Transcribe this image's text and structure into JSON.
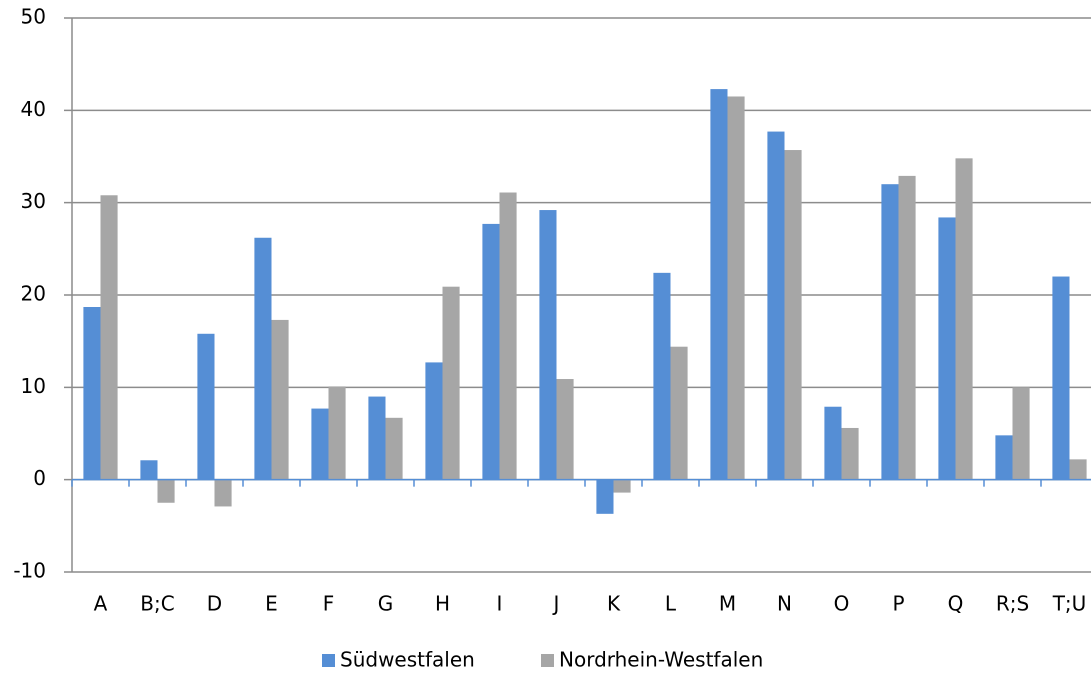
{
  "chart_data": {
    "type": "bar",
    "categories": [
      "A",
      "B;C",
      "D",
      "E",
      "F",
      "G",
      "H",
      "I",
      "J",
      "K",
      "L",
      "M",
      "N",
      "O",
      "P",
      "Q",
      "R;S",
      "T;U"
    ],
    "series": [
      {
        "name": "Südwestfalen",
        "color": "#558ed5",
        "values": [
          18.7,
          2.1,
          15.8,
          26.2,
          7.7,
          9.0,
          12.7,
          27.7,
          29.2,
          -3.7,
          22.4,
          42.3,
          37.7,
          7.9,
          32.0,
          28.4,
          4.8,
          22.0
        ]
      },
      {
        "name": "Nordrhein-Westfalen",
        "color": "#a6a6a6",
        "values": [
          30.8,
          -2.5,
          -2.9,
          17.3,
          10.1,
          6.7,
          20.9,
          31.1,
          10.9,
          -1.4,
          14.4,
          41.5,
          35.7,
          5.6,
          32.9,
          34.8,
          10.0,
          2.2
        ]
      }
    ],
    "ylim": [
      -10,
      50
    ],
    "yticks": [
      -10,
      0,
      10,
      20,
      30,
      40,
      50
    ],
    "grid": true,
    "legend": "bottom"
  }
}
